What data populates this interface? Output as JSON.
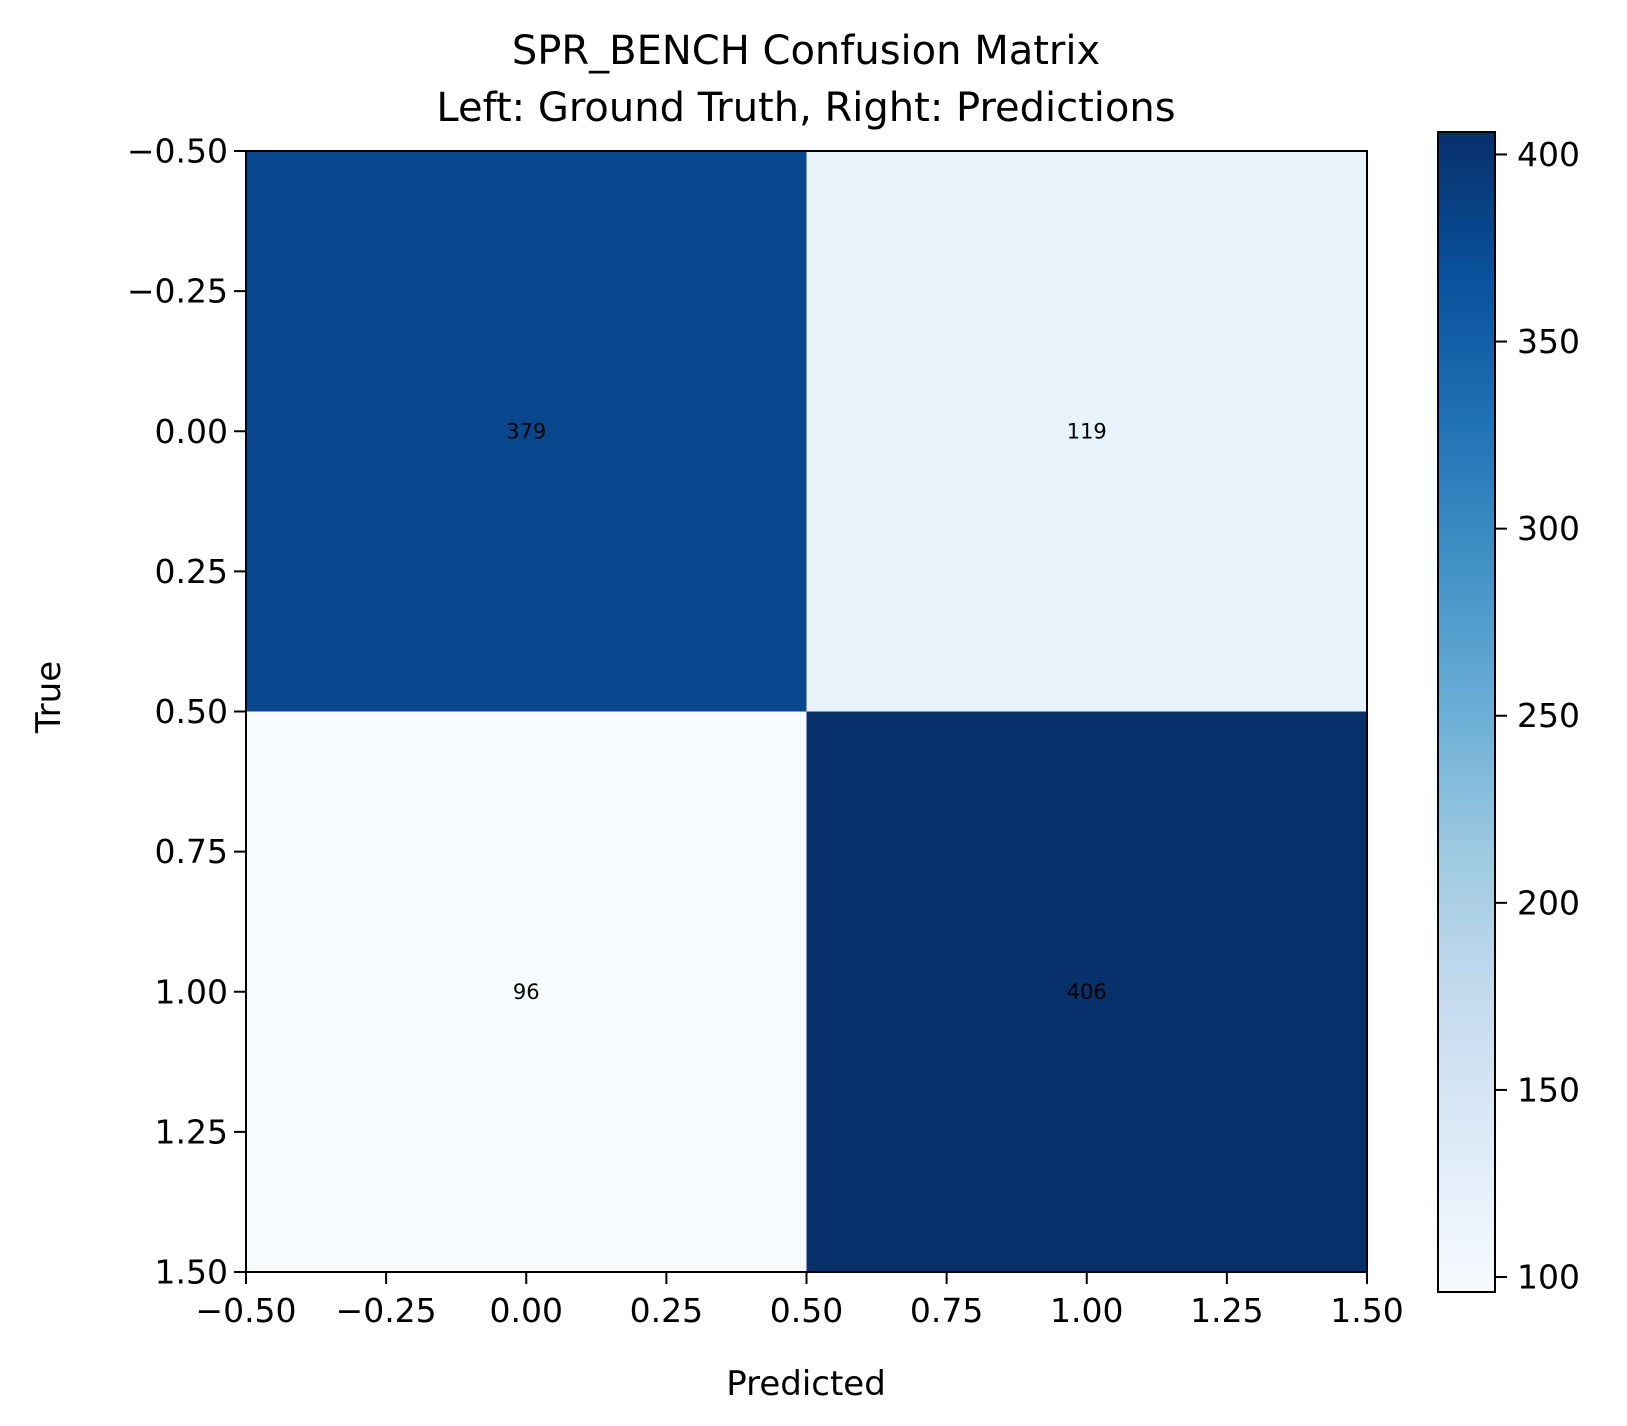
{
  "chart_data": {
    "type": "heatmap",
    "title_lines": [
      "SPR_BENCH Confusion Matrix",
      "Left: Ground Truth, Right: Predictions"
    ],
    "xlabel": "Predicted",
    "ylabel": "True",
    "xlim": [
      -0.5,
      1.5
    ],
    "ylim": [
      1.5,
      -0.5
    ],
    "x_ticks": [
      -0.5,
      -0.25,
      0.0,
      0.25,
      0.5,
      0.75,
      1.0,
      1.25,
      1.5
    ],
    "y_ticks": [
      -0.5,
      -0.25,
      0.0,
      0.25,
      0.5,
      0.75,
      1.0,
      1.25,
      1.5
    ],
    "x_tick_labels": [
      "−0.50",
      "−0.25",
      "0.00",
      "0.25",
      "0.50",
      "0.75",
      "1.00",
      "1.25",
      "1.50"
    ],
    "y_tick_labels": [
      "−0.50",
      "−0.25",
      "0.00",
      "0.25",
      "0.50",
      "0.75",
      "1.00",
      "1.25",
      "1.50"
    ],
    "matrix": [
      [
        379,
        119
      ],
      [
        96,
        406
      ]
    ],
    "cell_labels": [
      [
        "379",
        "119"
      ],
      [
        "96",
        "406"
      ]
    ],
    "colormap": "Blues",
    "colormap_stops": [
      "#f7fbff",
      "#deebf7",
      "#c6dbef",
      "#9ecae1",
      "#6baed6",
      "#4292c6",
      "#2171b5",
      "#08519c",
      "#08306b"
    ],
    "colorbar": {
      "range": [
        96,
        406
      ],
      "ticks": [
        100,
        150,
        200,
        250,
        300,
        350,
        400
      ],
      "tick_labels": [
        "100",
        "150",
        "200",
        "250",
        "300",
        "350",
        "400"
      ]
    },
    "grid": false,
    "legend": "none"
  }
}
